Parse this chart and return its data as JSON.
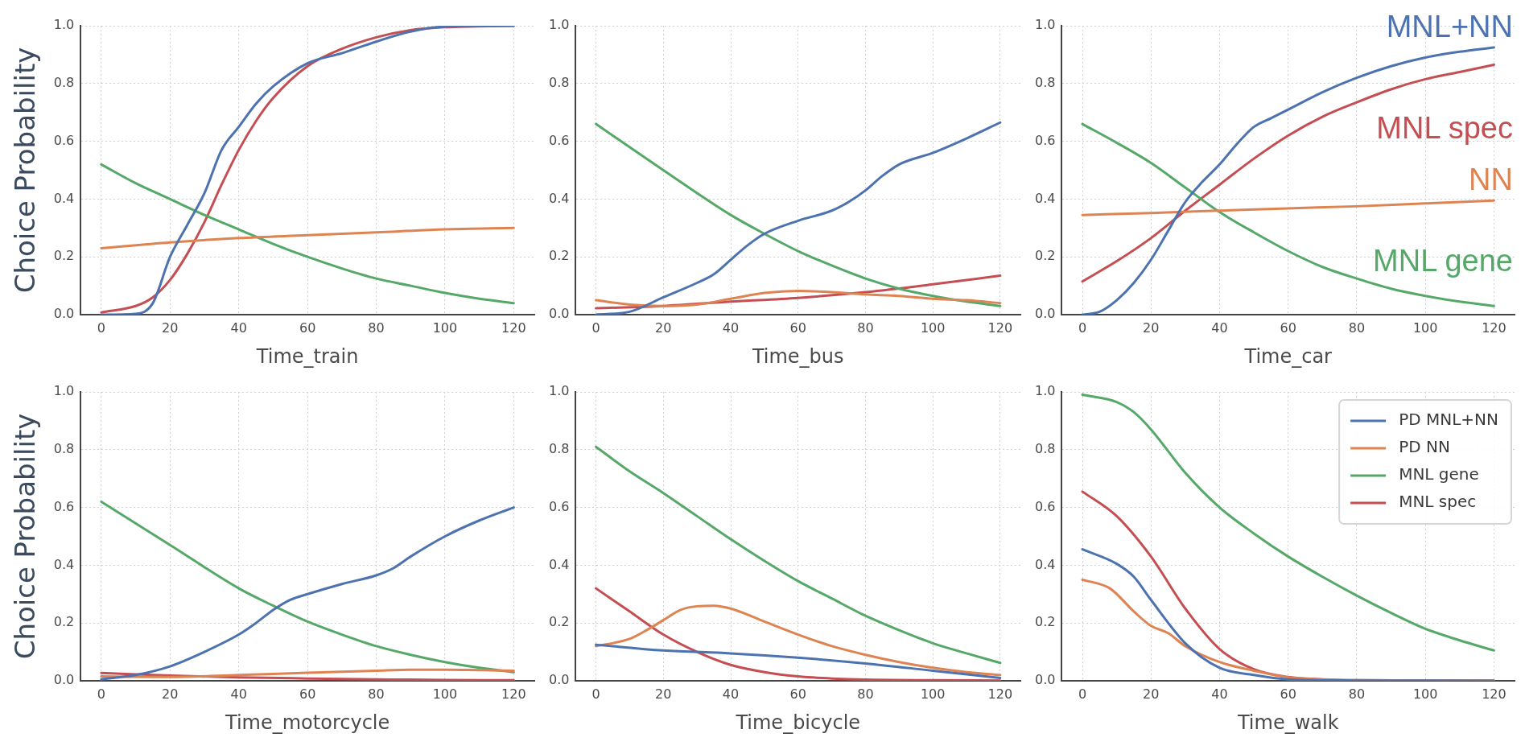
{
  "chart_data": [
    {
      "type": "line",
      "xlabel": "Time_train",
      "ylabel": "Choice Probability",
      "xlim": [
        -6,
        126
      ],
      "ylim": [
        0,
        1
      ],
      "xticks": [
        0,
        20,
        40,
        60,
        80,
        100,
        120
      ],
      "yticks": [
        {
          "value": 0,
          "label": "0.0"
        },
        {
          "value": 0.2,
          "label": "0.2"
        },
        {
          "value": 0.4,
          "label": "0.4"
        },
        {
          "value": 0.6,
          "label": "0.6"
        },
        {
          "value": 0.8,
          "label": "0.8"
        },
        {
          "value": 1,
          "label": "1.0"
        }
      ],
      "grid": true,
      "marker": "none",
      "line_style": "solid",
      "series": [
        {
          "color": "#4c72b0",
          "x": [
            0,
            10,
            15,
            20,
            25,
            30,
            35,
            40,
            45,
            50,
            60,
            70,
            80,
            90,
            100,
            120
          ],
          "values": [
            0.0,
            0.003,
            0.04,
            0.2,
            0.31,
            0.42,
            0.57,
            0.65,
            0.73,
            0.79,
            0.87,
            0.905,
            0.945,
            0.98,
            0.997,
            1.0
          ]
        },
        {
          "color": "#dd8452",
          "x": [
            0,
            20,
            40,
            60,
            80,
            100,
            120
          ],
          "values": [
            0.23,
            0.25,
            0.265,
            0.275,
            0.285,
            0.295,
            0.3
          ]
        },
        {
          "color": "#55a868",
          "x": [
            0,
            10,
            20,
            30,
            40,
            50,
            60,
            70,
            80,
            90,
            100,
            110,
            120
          ],
          "values": [
            0.52,
            0.455,
            0.4,
            0.345,
            0.295,
            0.245,
            0.2,
            0.16,
            0.125,
            0.1,
            0.075,
            0.055,
            0.04
          ]
        },
        {
          "color": "#c44e52",
          "x": [
            0,
            10,
            15,
            20,
            25,
            30,
            35,
            40,
            45,
            50,
            60,
            70,
            80,
            90,
            100,
            120
          ],
          "values": [
            0.008,
            0.03,
            0.06,
            0.12,
            0.21,
            0.32,
            0.45,
            0.57,
            0.67,
            0.75,
            0.86,
            0.92,
            0.96,
            0.985,
            0.995,
            1.0
          ]
        }
      ]
    },
    {
      "type": "line",
      "xlabel": "Time_bus",
      "xlim": [
        -6,
        126
      ],
      "ylim": [
        0,
        1
      ],
      "xticks": [
        0,
        20,
        40,
        60,
        80,
        100,
        120
      ],
      "yticks": [
        {
          "value": 0,
          "label": "0.0"
        },
        {
          "value": 0.2,
          "label": "0.2"
        },
        {
          "value": 0.4,
          "label": "0.4"
        },
        {
          "value": 0.6,
          "label": "0.6"
        },
        {
          "value": 0.8,
          "label": "0.8"
        },
        {
          "value": 1,
          "label": "1.0"
        }
      ],
      "grid": true,
      "marker": "none",
      "line_style": "solid",
      "series": [
        {
          "color": "#4c72b0",
          "x": [
            0,
            10,
            20,
            30,
            35,
            40,
            45,
            50,
            60,
            70,
            75,
            80,
            85,
            90,
            100,
            110,
            120
          ],
          "values": [
            0.0,
            0.01,
            0.06,
            0.11,
            0.14,
            0.19,
            0.24,
            0.28,
            0.325,
            0.36,
            0.39,
            0.43,
            0.48,
            0.52,
            0.56,
            0.61,
            0.665
          ]
        },
        {
          "color": "#dd8452",
          "x": [
            0,
            10,
            20,
            30,
            40,
            50,
            60,
            70,
            80,
            90,
            100,
            110,
            120
          ],
          "values": [
            0.05,
            0.035,
            0.03,
            0.035,
            0.055,
            0.075,
            0.082,
            0.078,
            0.07,
            0.065,
            0.055,
            0.05,
            0.04
          ]
        },
        {
          "color": "#55a868",
          "x": [
            0,
            20,
            40,
            50,
            60,
            70,
            80,
            90,
            100,
            110,
            120
          ],
          "values": [
            0.66,
            0.5,
            0.345,
            0.28,
            0.22,
            0.17,
            0.125,
            0.09,
            0.065,
            0.045,
            0.03
          ]
        },
        {
          "color": "#c44e52",
          "x": [
            0,
            20,
            40,
            60,
            80,
            100,
            120
          ],
          "values": [
            0.022,
            0.03,
            0.045,
            0.058,
            0.078,
            0.105,
            0.135
          ]
        }
      ]
    },
    {
      "type": "line",
      "xlabel": "Time_car",
      "xlim": [
        -6,
        126
      ],
      "ylim": [
        0,
        1
      ],
      "xticks": [
        0,
        20,
        40,
        60,
        80,
        100,
        120
      ],
      "yticks": [
        {
          "value": 0,
          "label": "0.0"
        },
        {
          "value": 0.2,
          "label": "0.2"
        },
        {
          "value": 0.4,
          "label": "0.4"
        },
        {
          "value": 0.6,
          "label": "0.6"
        },
        {
          "value": 0.8,
          "label": "0.8"
        },
        {
          "value": 1,
          "label": "1.0"
        }
      ],
      "grid": true,
      "marker": "none",
      "line_style": "solid",
      "annotations": [
        "MNL+NN",
        "NN",
        "MNL gene",
        "MNL spec"
      ],
      "series": [
        {
          "color": "#4c72b0",
          "x": [
            0,
            5,
            10,
            15,
            20,
            25,
            30,
            35,
            40,
            45,
            50,
            55,
            60,
            70,
            80,
            90,
            100,
            110,
            120
          ],
          "values": [
            0.0,
            0.01,
            0.05,
            0.11,
            0.19,
            0.29,
            0.39,
            0.46,
            0.52,
            0.59,
            0.65,
            0.68,
            0.71,
            0.77,
            0.82,
            0.86,
            0.89,
            0.91,
            0.925
          ]
        },
        {
          "color": "#dd8452",
          "x": [
            0,
            20,
            40,
            60,
            80,
            100,
            120
          ],
          "values": [
            0.345,
            0.352,
            0.36,
            0.368,
            0.375,
            0.385,
            0.395
          ]
        },
        {
          "color": "#55a868",
          "x": [
            0,
            10,
            20,
            30,
            40,
            50,
            60,
            70,
            80,
            90,
            100,
            110,
            120
          ],
          "values": [
            0.66,
            0.595,
            0.525,
            0.44,
            0.355,
            0.285,
            0.22,
            0.165,
            0.125,
            0.09,
            0.065,
            0.045,
            0.03
          ]
        },
        {
          "color": "#c44e52",
          "x": [
            0,
            10,
            20,
            30,
            40,
            50,
            60,
            70,
            80,
            90,
            100,
            110,
            120
          ],
          "values": [
            0.115,
            0.185,
            0.265,
            0.36,
            0.45,
            0.54,
            0.62,
            0.685,
            0.735,
            0.78,
            0.815,
            0.84,
            0.865
          ]
        }
      ]
    },
    {
      "type": "line",
      "xlabel": "Time_motorcycle",
      "ylabel": "Choice Probability",
      "xlim": [
        -6,
        126
      ],
      "ylim": [
        0,
        1
      ],
      "xticks": [
        0,
        20,
        40,
        60,
        80,
        100,
        120
      ],
      "yticks": [
        {
          "value": 0,
          "label": "0.0"
        },
        {
          "value": 0.2,
          "label": "0.2"
        },
        {
          "value": 0.4,
          "label": "0.4"
        },
        {
          "value": 0.6,
          "label": "0.6"
        },
        {
          "value": 0.8,
          "label": "0.8"
        },
        {
          "value": 1,
          "label": "1.0"
        }
      ],
      "grid": true,
      "marker": "none",
      "line_style": "solid",
      "series": [
        {
          "color": "#4c72b0",
          "x": [
            0,
            10,
            20,
            30,
            40,
            45,
            50,
            55,
            60,
            70,
            80,
            85,
            90,
            100,
            110,
            120
          ],
          "values": [
            0.005,
            0.02,
            0.05,
            0.1,
            0.16,
            0.2,
            0.245,
            0.28,
            0.3,
            0.335,
            0.365,
            0.39,
            0.43,
            0.5,
            0.555,
            0.6
          ]
        },
        {
          "color": "#dd8452",
          "x": [
            0,
            20,
            40,
            60,
            80,
            90,
            100,
            120
          ],
          "values": [
            0.015,
            0.013,
            0.02,
            0.028,
            0.035,
            0.038,
            0.038,
            0.035
          ]
        },
        {
          "color": "#55a868",
          "x": [
            0,
            20,
            40,
            50,
            60,
            70,
            80,
            90,
            100,
            110,
            120
          ],
          "values": [
            0.62,
            0.47,
            0.32,
            0.26,
            0.205,
            0.16,
            0.12,
            0.09,
            0.065,
            0.045,
            0.03
          ]
        },
        {
          "color": "#c44e52",
          "x": [
            0,
            20,
            40,
            60,
            80,
            100,
            120
          ],
          "values": [
            0.027,
            0.018,
            0.012,
            0.008,
            0.005,
            0.003,
            0.002
          ]
        }
      ]
    },
    {
      "type": "line",
      "xlabel": "Time_bicycle",
      "xlim": [
        -6,
        126
      ],
      "ylim": [
        0,
        1
      ],
      "xticks": [
        0,
        20,
        40,
        60,
        80,
        100,
        120
      ],
      "yticks": [
        {
          "value": 0,
          "label": "0.0"
        },
        {
          "value": 0.2,
          "label": "0.2"
        },
        {
          "value": 0.4,
          "label": "0.4"
        },
        {
          "value": 0.6,
          "label": "0.6"
        },
        {
          "value": 0.8,
          "label": "0.8"
        },
        {
          "value": 1,
          "label": "1.0"
        }
      ],
      "grid": true,
      "marker": "none",
      "line_style": "solid",
      "series": [
        {
          "color": "#4c72b0",
          "x": [
            0,
            20,
            40,
            60,
            80,
            100,
            120
          ],
          "values": [
            0.125,
            0.105,
            0.095,
            0.08,
            0.06,
            0.035,
            0.01
          ]
        },
        {
          "color": "#dd8452",
          "x": [
            0,
            10,
            15,
            20,
            25,
            30,
            35,
            40,
            50,
            60,
            70,
            80,
            90,
            100,
            110,
            120
          ],
          "values": [
            0.12,
            0.145,
            0.175,
            0.21,
            0.245,
            0.258,
            0.26,
            0.25,
            0.205,
            0.16,
            0.12,
            0.09,
            0.065,
            0.045,
            0.03,
            0.02
          ]
        },
        {
          "color": "#55a868",
          "x": [
            0,
            10,
            20,
            30,
            40,
            50,
            60,
            70,
            80,
            90,
            100,
            110,
            120
          ],
          "values": [
            0.81,
            0.725,
            0.65,
            0.57,
            0.49,
            0.415,
            0.345,
            0.285,
            0.225,
            0.175,
            0.13,
            0.095,
            0.062
          ]
        },
        {
          "color": "#c44e52",
          "x": [
            0,
            10,
            20,
            30,
            40,
            50,
            60,
            70,
            80,
            100,
            120
          ],
          "values": [
            0.32,
            0.24,
            0.16,
            0.1,
            0.055,
            0.03,
            0.015,
            0.008,
            0.004,
            0.002,
            0.001
          ]
        }
      ]
    },
    {
      "type": "line",
      "xlabel": "Time_walk",
      "xlim": [
        -6,
        126
      ],
      "ylim": [
        0,
        1
      ],
      "xticks": [
        0,
        20,
        40,
        60,
        80,
        100,
        120
      ],
      "yticks": [
        {
          "value": 0,
          "label": "0.0"
        },
        {
          "value": 0.2,
          "label": "0.2"
        },
        {
          "value": 0.4,
          "label": "0.4"
        },
        {
          "value": 0.6,
          "label": "0.6"
        },
        {
          "value": 0.8,
          "label": "0.8"
        },
        {
          "value": 1,
          "label": "1.0"
        }
      ],
      "grid": true,
      "marker": "none",
      "line_style": "solid",
      "legend": "top right",
      "series": [
        {
          "name": "PD MNL+NN",
          "color": "#4c72b0",
          "x": [
            0,
            10,
            15,
            20,
            30,
            40,
            50,
            60,
            80,
            120
          ],
          "values": [
            0.455,
            0.405,
            0.36,
            0.28,
            0.13,
            0.045,
            0.02,
            0.005,
            0.001,
            0.0
          ]
        },
        {
          "name": "PD NN",
          "color": "#dd8452",
          "x": [
            0,
            8,
            15,
            20,
            25,
            30,
            40,
            50,
            60,
            80,
            120
          ],
          "values": [
            0.35,
            0.32,
            0.24,
            0.19,
            0.165,
            0.12,
            0.065,
            0.035,
            0.012,
            0.002,
            0.0
          ]
        },
        {
          "name": "MNL gene",
          "color": "#55a868",
          "x": [
            0,
            10,
            15,
            20,
            30,
            40,
            50,
            60,
            70,
            80,
            90,
            100,
            110,
            120
          ],
          "values": [
            0.99,
            0.965,
            0.93,
            0.87,
            0.72,
            0.6,
            0.51,
            0.43,
            0.36,
            0.295,
            0.235,
            0.18,
            0.14,
            0.105
          ]
        },
        {
          "name": "MNL spec",
          "color": "#c44e52",
          "x": [
            0,
            10,
            20,
            30,
            40,
            50,
            60,
            70,
            80,
            120
          ],
          "values": [
            0.655,
            0.57,
            0.43,
            0.25,
            0.11,
            0.04,
            0.013,
            0.005,
            0.002,
            0.0
          ]
        }
      ]
    }
  ]
}
